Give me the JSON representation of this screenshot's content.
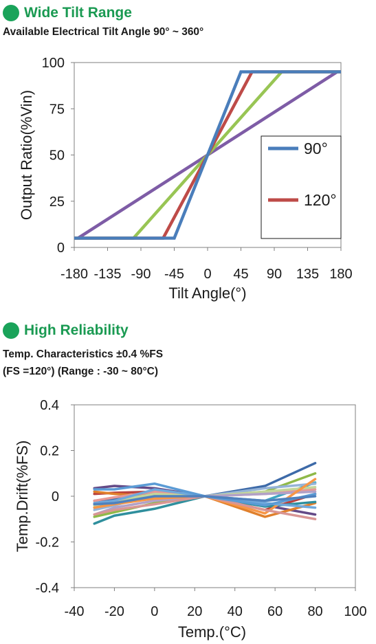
{
  "section1": {
    "title": "Wide Tilt Range",
    "subtitle": "Available Electrical Tilt Angle 90° ~ 360°"
  },
  "section2": {
    "title": "High Reliability",
    "line1": "Temp. Characteristics ±0.4 %FS",
    "line2": "(FS =120°) (Range : -30 ~ 80°C)"
  },
  "chart_data": [
    {
      "type": "line",
      "title": "",
      "xlabel": "Tilt Angle(°)",
      "ylabel": "Output Ratio(%Vin)",
      "xlim": [
        -180,
        180
      ],
      "ylim": [
        0,
        100
      ],
      "xticks": [
        -180,
        -135,
        -90,
        -45,
        0,
        45,
        90,
        135,
        180
      ],
      "yticks": [
        0,
        25,
        50,
        75,
        100
      ],
      "x_tick_labels": [
        "-180",
        "-135",
        "-90",
        "-45",
        "0",
        "45",
        "90",
        "135",
        "180"
      ],
      "y_tick_labels": [
        "0",
        "25",
        "50",
        "75",
        "100"
      ],
      "grid": false,
      "legend_position": "right",
      "series": [
        {
          "name": "90°",
          "color": "#4a7ebb",
          "x": [
            -180,
            -45,
            45,
            180
          ],
          "y": [
            5,
            5,
            95,
            95
          ]
        },
        {
          "name": "120°",
          "color": "#be4b48",
          "x": [
            -180,
            -60,
            60,
            180
          ],
          "y": [
            5,
            5,
            95,
            95
          ]
        },
        {
          "color": "#98c554",
          "x": [
            -180,
            -100,
            100,
            180
          ],
          "y": [
            5,
            5,
            95,
            95
          ]
        },
        {
          "color": "#7e5ca6",
          "x": [
            -175,
            175
          ],
          "y": [
            5,
            95
          ]
        }
      ]
    },
    {
      "type": "line",
      "title": "",
      "xlabel": "Temp.(°C)",
      "ylabel": "Temp.Drift(%FS)",
      "xlim": [
        -40,
        100
      ],
      "ylim": [
        -0.4,
        0.4
      ],
      "xticks": [
        -40,
        -20,
        0,
        20,
        40,
        60,
        80,
        100
      ],
      "yticks": [
        -0.4,
        -0.2,
        0,
        0.2,
        0.4
      ],
      "x_tick_labels": [
        "-40",
        "-20",
        "0",
        "20",
        "40",
        "60",
        "80",
        "100"
      ],
      "y_tick_labels": [
        "-0.4",
        "-0.2",
        "0",
        "0.2",
        "0.4"
      ],
      "grid": false,
      "x": [
        -30,
        -20,
        0,
        25,
        55,
        80
      ],
      "series": [
        {
          "color": "#3d6aa8",
          "y": [
            -0.02,
            -0.01,
            0.01,
            0,
            0.045,
            0.145
          ]
        },
        {
          "color": "#b9413e",
          "y": [
            0.01,
            0.015,
            0.02,
            0,
            -0.06,
            0.01
          ]
        },
        {
          "color": "#8fb949",
          "y": [
            -0.09,
            -0.07,
            -0.03,
            0,
            0.02,
            0.1
          ]
        },
        {
          "color": "#644a87",
          "y": [
            0.035,
            0.045,
            0.035,
            0,
            -0.04,
            -0.08
          ]
        },
        {
          "color": "#3ea6c2",
          "y": [
            -0.05,
            -0.03,
            -0.01,
            0,
            -0.02,
            0.06
          ]
        },
        {
          "color": "#e0802c",
          "y": [
            0.02,
            0.01,
            0,
            0,
            -0.09,
            -0.03
          ]
        },
        {
          "color": "#95b3d7",
          "y": [
            -0.06,
            -0.04,
            0.005,
            0,
            0.035,
            0.055
          ]
        },
        {
          "color": "#e69896",
          "y": [
            -0.02,
            -0.005,
            0.02,
            0,
            0.01,
            0.03
          ]
        },
        {
          "color": "#c3d69b",
          "y": [
            -0.04,
            -0.02,
            0.01,
            0,
            0.02,
            0.04
          ]
        },
        {
          "color": "#b2a1c7",
          "y": [
            -0.08,
            -0.05,
            -0.02,
            0,
            0.01,
            0.02
          ]
        },
        {
          "color": "#2f8f9d",
          "y": [
            -0.12,
            -0.085,
            -0.055,
            0,
            -0.045,
            -0.025
          ]
        },
        {
          "color": "#f79646",
          "y": [
            -0.05,
            -0.035,
            -0.01,
            0,
            -0.075,
            0.075
          ]
        },
        {
          "color": "#6fa8dc",
          "y": [
            -0.03,
            -0.02,
            0.03,
            0,
            -0.03,
            -0.05
          ]
        },
        {
          "color": "#d99694",
          "y": [
            -0.08,
            -0.06,
            -0.035,
            0,
            -0.06,
            -0.1
          ]
        },
        {
          "color": "#5b9bd5",
          "y": [
            0.03,
            0.03,
            0.055,
            0,
            -0.04,
            0.01
          ]
        },
        {
          "color": "#4f81bd",
          "y": [
            -0.035,
            -0.03,
            0.0,
            0,
            -0.02,
            0.0
          ]
        }
      ]
    }
  ]
}
